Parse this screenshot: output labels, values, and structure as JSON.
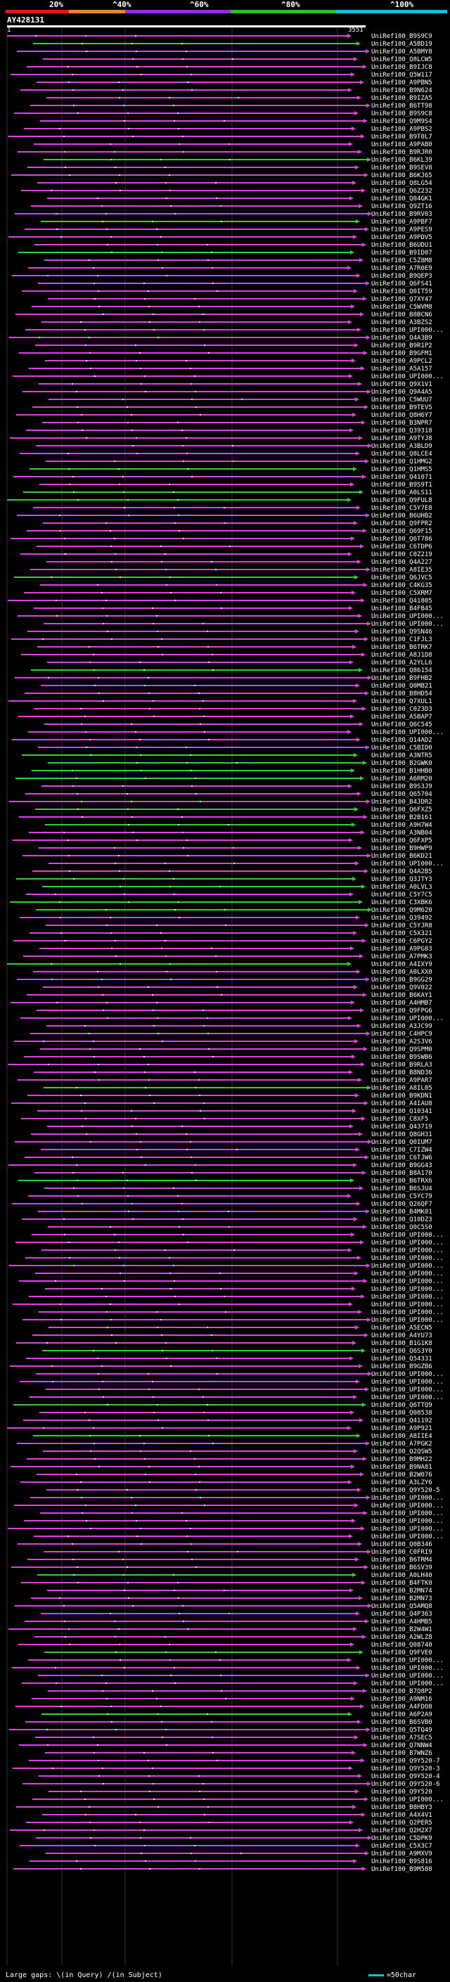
{
  "legend": {
    "labels": [
      "20%",
      "^40%",
      "^60%",
      "^80%",
      "^100%"
    ],
    "colors": [
      "#e01818",
      "#e88a1a",
      "#9a2ae0",
      "#1ec81e",
      "#1ab8e8"
    ]
  },
  "query": {
    "title": "AY428131",
    "start": "1",
    "end": "3551"
  },
  "colors": {
    "low_identity": "#e040e0",
    "high_identity": "#30d030",
    "gap": "#ffffff"
  },
  "hits": [
    {
      "label": "UniRef100_B9S9C9",
      "color": "m"
    },
    {
      "label": "UniRef100_A5BD19",
      "color": "g"
    },
    {
      "label": "UniRef100_A5BMY8",
      "color": "m"
    },
    {
      "label": "UniRef100_Q8LCW5",
      "color": "m"
    },
    {
      "label": "UniRef100_B9IJC8",
      "color": "m"
    },
    {
      "label": "UniRef100_Q5W117",
      "color": "m"
    },
    {
      "label": "UniRef100_A9PBN5",
      "color": "m"
    },
    {
      "label": "UniRef100_B9N624",
      "color": "m"
    },
    {
      "label": "UniRef100_B9IZA5",
      "color": "m"
    },
    {
      "label": "UniRef100_B6TT98",
      "color": "m"
    },
    {
      "label": "UniRef100_B9S9C8",
      "color": "m"
    },
    {
      "label": "UniRef100_Q9M9S4",
      "color": "m"
    },
    {
      "label": "UniRef100_A9PBS2",
      "color": "m"
    },
    {
      "label": "UniRef100_B9T0L7",
      "color": "m"
    },
    {
      "label": "UniRef100_A9PAB0",
      "color": "m"
    },
    {
      "label": "UniRef100_B9RJR0",
      "color": "m"
    },
    {
      "label": "UniRef100_B6KL39",
      "color": "g"
    },
    {
      "label": "UniRef100_B9SEV8",
      "color": "m"
    },
    {
      "label": "UniRef100_B6KJ65",
      "color": "m"
    },
    {
      "label": "UniRef100_Q8LG54",
      "color": "m"
    },
    {
      "label": "UniRef100_Q6Z232",
      "color": "m"
    },
    {
      "label": "UniRef100_Q04GK1",
      "color": "m"
    },
    {
      "label": "UniRef100_Q9ZT16",
      "color": "m"
    },
    {
      "label": "UniRef100_B9RV03",
      "color": "m"
    },
    {
      "label": "UniRef100_A9PBF7",
      "color": "g"
    },
    {
      "label": "UniRef100_A9PES9",
      "color": "m"
    },
    {
      "label": "UniRef100_A9PDV5",
      "color": "m"
    },
    {
      "label": "UniRef100_B6UDU1",
      "color": "m"
    },
    {
      "label": "UniRef100_B9ID07",
      "color": "g"
    },
    {
      "label": "UniRef100_C5Z8M8",
      "color": "m"
    },
    {
      "label": "UniRef100_A7R0E9",
      "color": "m"
    },
    {
      "label": "UniRef100_B9QEP3",
      "color": "m"
    },
    {
      "label": "UniRef100_Q6FS41",
      "color": "m"
    },
    {
      "label": "UniRef100_Q0IT59",
      "color": "m"
    },
    {
      "label": "UniRef100_Q7XY47",
      "color": "m"
    },
    {
      "label": "UniRef100_C5WVM8",
      "color": "m"
    },
    {
      "label": "UniRef100_B8BCN6",
      "color": "m"
    },
    {
      "label": "UniRef100_A3BZS2",
      "color": "m"
    },
    {
      "label": "UniRef100_UPI000...",
      "color": "m"
    },
    {
      "label": "UniRef100_Q4A3B9",
      "color": "m"
    },
    {
      "label": "UniRef100_B9R1P2",
      "color": "m"
    },
    {
      "label": "UniRef100_B9GFM1",
      "color": "m"
    },
    {
      "label": "UniRef100_A9PCL2",
      "color": "m"
    },
    {
      "label": "UniRef100_A5A157",
      "color": "m"
    },
    {
      "label": "UniRef100_UPI000...",
      "color": "m"
    },
    {
      "label": "UniRef100_Q9X1V1",
      "color": "m"
    },
    {
      "label": "UniRef100_Q9A4A5",
      "color": "m"
    },
    {
      "label": "UniRef100_C5WUU7",
      "color": "m"
    },
    {
      "label": "UniRef100_B9TEV5",
      "color": "m"
    },
    {
      "label": "UniRef100_Q8H6Y7",
      "color": "m"
    },
    {
      "label": "UniRef100_B3NPR7",
      "color": "m"
    },
    {
      "label": "UniRef100_Q39318",
      "color": "m"
    },
    {
      "label": "UniRef100_A9TYJ8",
      "color": "m"
    },
    {
      "label": "UniRef100_A3BLD9",
      "color": "m"
    },
    {
      "label": "UniRef100_Q8LCE4",
      "color": "m"
    },
    {
      "label": "UniRef100_Q1HMG2",
      "color": "m"
    },
    {
      "label": "UniRef100_Q1HMS5",
      "color": "g"
    },
    {
      "label": "UniRef100_Q41071",
      "color": "m"
    },
    {
      "label": "UniRef100_B9S9T1",
      "color": "m"
    },
    {
      "label": "UniRef100_A0LS11",
      "color": "g"
    },
    {
      "label": "UniRef100_Q9FUL8",
      "color": "g"
    },
    {
      "label": "UniRef100_C5Y7E8",
      "color": "m"
    },
    {
      "label": "UniRef100_B6UHB2",
      "color": "m"
    },
    {
      "label": "UniRef100_Q9FPR2",
      "color": "m"
    },
    {
      "label": "UniRef100_Q69F15",
      "color": "m"
    },
    {
      "label": "UniRef100_Q6T786",
      "color": "m"
    },
    {
      "label": "UniRef100_C6TDP6",
      "color": "m"
    },
    {
      "label": "UniRef100_C0Z219",
      "color": "m"
    },
    {
      "label": "UniRef100_Q4A227",
      "color": "m"
    },
    {
      "label": "UniRef100_A8IE35",
      "color": "m"
    },
    {
      "label": "UniRef100_Q6JVC5",
      "color": "g"
    },
    {
      "label": "UniRef100_C4KG35",
      "color": "m"
    },
    {
      "label": "UniRef100_C5XRM7",
      "color": "m"
    },
    {
      "label": "UniRef100_Q41805",
      "color": "m"
    },
    {
      "label": "UniRef100_B4FB45",
      "color": "m"
    },
    {
      "label": "UniRef100_UPI000...",
      "color": "m"
    },
    {
      "label": "UniRef100_UPI000...",
      "color": "m"
    },
    {
      "label": "UniRef100_Q9SN46",
      "color": "m"
    },
    {
      "label": "UniRef100_C1FJL3",
      "color": "m"
    },
    {
      "label": "UniRef100_B6TRK7",
      "color": "m"
    },
    {
      "label": "UniRef100_A8J1D8",
      "color": "m"
    },
    {
      "label": "UniRef100_A2YLL6",
      "color": "m"
    },
    {
      "label": "UniRef100_Q86154",
      "color": "g"
    },
    {
      "label": "UniRef100_B9FHB2",
      "color": "m"
    },
    {
      "label": "UniRef100_Q0MB21",
      "color": "m"
    },
    {
      "label": "UniRef100_B8HD54",
      "color": "m"
    },
    {
      "label": "UniRef100_Q7XUL1",
      "color": "m"
    },
    {
      "label": "UniRef100_C0Z3D3",
      "color": "m"
    },
    {
      "label": "UniRef100_A5BAP7",
      "color": "m"
    },
    {
      "label": "UniRef100_Q6C545",
      "color": "m"
    },
    {
      "label": "UniRef100_UPI000...",
      "color": "m"
    },
    {
      "label": "UniRef100_Q14AD2",
      "color": "m"
    },
    {
      "label": "UniRef100_C5BID0",
      "color": "m"
    },
    {
      "label": "UniRef100_A3NTR5",
      "color": "g"
    },
    {
      "label": "UniRef100_B2GWK0",
      "color": "g"
    },
    {
      "label": "UniRef100_B1HHB0",
      "color": "g"
    },
    {
      "label": "UniRef100_A6RM20",
      "color": "g"
    },
    {
      "label": "UniRef100_B9S3J9",
      "color": "m"
    },
    {
      "label": "UniRef100_Q65704",
      "color": "m"
    },
    {
      "label": "UniRef100_B4JDR2",
      "color": "m"
    },
    {
      "label": "UniRef100_Q6FXZ5",
      "color": "g"
    },
    {
      "label": "UniRef100_B2B161",
      "color": "m"
    },
    {
      "label": "UniRef100_A9H7W4",
      "color": "g"
    },
    {
      "label": "UniRef100_A3NB04",
      "color": "m"
    },
    {
      "label": "UniRef100_Q6FXP5",
      "color": "m"
    },
    {
      "label": "UniRef100_B9HWP9",
      "color": "m"
    },
    {
      "label": "UniRef100_B6KD21",
      "color": "m"
    },
    {
      "label": "UniRef100_UPI000...",
      "color": "m"
    },
    {
      "label": "UniRef100_Q4A2B5",
      "color": "m"
    },
    {
      "label": "UniRef100_Q3JTY3",
      "color": "g"
    },
    {
      "label": "UniRef100_A0LVL3",
      "color": "g"
    },
    {
      "label": "UniRef100_C5Y7C5",
      "color": "m"
    },
    {
      "label": "UniRef100_C3XBK6",
      "color": "g"
    },
    {
      "label": "UniRef100_Q9M620",
      "color": "g"
    },
    {
      "label": "UniRef100_Q39492",
      "color": "m"
    },
    {
      "label": "UniRef100_C5YJR8",
      "color": "m"
    },
    {
      "label": "UniRef100_C5X321",
      "color": "m"
    },
    {
      "label": "UniRef100_C6PGY2",
      "color": "m"
    },
    {
      "label": "UniRef100_A9PG83",
      "color": "m"
    },
    {
      "label": "UniRef100_A7PMK3",
      "color": "m"
    },
    {
      "label": "UniRef100_A4IXY9",
      "color": "g"
    },
    {
      "label": "UniRef100_A0LXX0",
      "color": "m"
    },
    {
      "label": "UniRef100_B9GG29",
      "color": "m"
    },
    {
      "label": "UniRef100_Q9V022",
      "color": "m"
    },
    {
      "label": "UniRef100_B6KAY1",
      "color": "m"
    },
    {
      "label": "UniRef100_A4HMB7",
      "color": "m"
    },
    {
      "label": "UniRef100_Q9FPG6",
      "color": "m"
    },
    {
      "label": "UniRef100_UPI000...",
      "color": "m"
    },
    {
      "label": "UniRef100_A3JC99",
      "color": "m"
    },
    {
      "label": "UniRef100_C4HPC9",
      "color": "m"
    },
    {
      "label": "UniRef100_A2S3V6",
      "color": "m"
    },
    {
      "label": "UniRef100_Q9SPM0",
      "color": "m"
    },
    {
      "label": "UniRef100_B9SWB6",
      "color": "m"
    },
    {
      "label": "UniRef100_B9RLA3",
      "color": "m"
    },
    {
      "label": "UniRef100_B8ND36",
      "color": "m"
    },
    {
      "label": "UniRef100_A9PAR7",
      "color": "m"
    },
    {
      "label": "UniRef100_A8IL05",
      "color": "g"
    },
    {
      "label": "UniRef100_B9KDN1",
      "color": "m"
    },
    {
      "label": "UniRef100_A4IAU8",
      "color": "m"
    },
    {
      "label": "UniRef100_Q10341",
      "color": "m"
    },
    {
      "label": "UniRef100_C8XF5",
      "color": "m"
    },
    {
      "label": "UniRef100_Q43719",
      "color": "m"
    },
    {
      "label": "UniRef100_Q8GH31",
      "color": "m"
    },
    {
      "label": "UniRef100_Q0IUM7",
      "color": "m"
    },
    {
      "label": "UniRef100_C7IZW4",
      "color": "m"
    },
    {
      "label": "UniRef100_C6TJW6",
      "color": "m"
    },
    {
      "label": "UniRef100_B9GG43",
      "color": "m"
    },
    {
      "label": "UniRef100_B8A170",
      "color": "m"
    },
    {
      "label": "UniRef100_B6TRX6",
      "color": "g"
    },
    {
      "label": "UniRef100_B6SJU4",
      "color": "m"
    },
    {
      "label": "UniRef100_C5YC79",
      "color": "m"
    },
    {
      "label": "UniRef100_Q26QF7",
      "color": "m"
    },
    {
      "label": "UniRef100_B4MK01",
      "color": "m"
    },
    {
      "label": "UniRef100_Q10DZ3",
      "color": "m"
    },
    {
      "label": "UniRef100_Q0C5S0",
      "color": "m"
    },
    {
      "label": "UniRef100_UPI000...",
      "color": "m"
    },
    {
      "label": "UniRef100_UPI000...",
      "color": "m"
    },
    {
      "label": "UniRef100_UPI000...",
      "color": "m"
    },
    {
      "label": "UniRef100_UPI000...",
      "color": "m"
    },
    {
      "label": "UniRef100_UPI000...",
      "color": "m"
    },
    {
      "label": "UniRef100_UPI000...",
      "color": "m"
    },
    {
      "label": "UniRef100_UPI000...",
      "color": "m"
    },
    {
      "label": "UniRef100_UPI000...",
      "color": "m"
    },
    {
      "label": "UniRef100_UPI000...",
      "color": "m"
    },
    {
      "label": "UniRef100_UPI000...",
      "color": "m"
    },
    {
      "label": "UniRef100_UPI000...",
      "color": "m"
    },
    {
      "label": "UniRef100_UPI000...",
      "color": "m"
    },
    {
      "label": "UniRef100_A5ECN5",
      "color": "m"
    },
    {
      "label": "UniRef100_A4YU73",
      "color": "m"
    },
    {
      "label": "UniRef100_B1G1K8",
      "color": "m"
    },
    {
      "label": "UniRef100_Q6S3Y0",
      "color": "g"
    },
    {
      "label": "UniRef100_Q54331",
      "color": "m"
    },
    {
      "label": "UniRef100_B9GZB6",
      "color": "m"
    },
    {
      "label": "UniRef100_UPI000...",
      "color": "m"
    },
    {
      "label": "UniRef100_UPI000...",
      "color": "m"
    },
    {
      "label": "UniRef100_UPI000...",
      "color": "m"
    },
    {
      "label": "UniRef100_UPI000...",
      "color": "m"
    },
    {
      "label": "UniRef100_Q6TTQ9",
      "color": "g"
    },
    {
      "label": "UniRef100_Q08538",
      "color": "m"
    },
    {
      "label": "UniRef100_Q41192",
      "color": "m"
    },
    {
      "label": "UniRef100_A9P921",
      "color": "m"
    },
    {
      "label": "UniRef100_A8IIE4",
      "color": "g"
    },
    {
      "label": "UniRef100_A7PGK2",
      "color": "m"
    },
    {
      "label": "UniRef100_Q2QSW5",
      "color": "m"
    },
    {
      "label": "UniRef100_B9MH22",
      "color": "m"
    },
    {
      "label": "UniRef100_B9NA81",
      "color": "m"
    },
    {
      "label": "UniRef100_B2W076",
      "color": "m"
    },
    {
      "label": "UniRef100_A3LZY6",
      "color": "m"
    },
    {
      "label": "UniRef100_Q9Y520-5",
      "color": "m"
    },
    {
      "label": "UniRef100_UPI000...",
      "color": "m"
    },
    {
      "label": "UniRef100_UPI000...",
      "color": "m"
    },
    {
      "label": "UniRef100_UPI000...",
      "color": "m"
    },
    {
      "label": "UniRef100_UPI000...",
      "color": "m"
    },
    {
      "label": "UniRef100_UPI000...",
      "color": "m"
    },
    {
      "label": "UniRef100_UPI000...",
      "color": "m"
    },
    {
      "label": "UniRef100_Q0B346",
      "color": "m"
    },
    {
      "label": "UniRef100_C0FRI9",
      "color": "m"
    },
    {
      "label": "UniRef100_B6TRM4",
      "color": "m"
    },
    {
      "label": "UniRef100_B6SV39",
      "color": "m"
    },
    {
      "label": "UniRef100_A0LH40",
      "color": "g"
    },
    {
      "label": "UniRef100_B4FTK0",
      "color": "m"
    },
    {
      "label": "UniRef100_B2MN74",
      "color": "m"
    },
    {
      "label": "UniRef100_B2MN73",
      "color": "m"
    },
    {
      "label": "UniRef100_Q5AMQ8",
      "color": "m"
    },
    {
      "label": "UniRef100_Q4P363",
      "color": "m"
    },
    {
      "label": "UniRef100_A4HMB5",
      "color": "m"
    },
    {
      "label": "UniRef100_B2W4W1",
      "color": "m"
    },
    {
      "label": "UniRef100_A2WLZ8",
      "color": "m"
    },
    {
      "label": "UniRef100_Q08740",
      "color": "m"
    },
    {
      "label": "UniRef100_Q9FVE0",
      "color": "g"
    },
    {
      "label": "UniRef100_UPI000...",
      "color": "m"
    },
    {
      "label": "UniRef100_UPI000...",
      "color": "m"
    },
    {
      "label": "UniRef100_UPI000...",
      "color": "m"
    },
    {
      "label": "UniRef100_UPI000...",
      "color": "m"
    },
    {
      "label": "UniRef100_B7Q8P2",
      "color": "m"
    },
    {
      "label": "UniRef100_A9NM16",
      "color": "m"
    },
    {
      "label": "UniRef100_A4FDO8",
      "color": "m"
    },
    {
      "label": "UniRef100_A6P2A9",
      "color": "g"
    },
    {
      "label": "UniRef100_B6SVB0",
      "color": "m"
    },
    {
      "label": "UniRef100_Q5TQ49",
      "color": "m"
    },
    {
      "label": "UniRef100_A7SEC5",
      "color": "m"
    },
    {
      "label": "UniRef100_Q7NNW4",
      "color": "m"
    },
    {
      "label": "UniRef100_B7WNZ6",
      "color": "m"
    },
    {
      "label": "UniRef100_Q9Y520-7",
      "color": "m"
    },
    {
      "label": "UniRef100_Q9Y520-3",
      "color": "m"
    },
    {
      "label": "UniRef100_Q9Y520-4",
      "color": "m"
    },
    {
      "label": "UniRef100_Q9Y520-6",
      "color": "m"
    },
    {
      "label": "UniRef100_Q9Y520",
      "color": "m"
    },
    {
      "label": "UniRef100_UPI000...",
      "color": "m"
    },
    {
      "label": "UniRef100_B8HBY3",
      "color": "m"
    },
    {
      "label": "UniRef100_A4X4V1",
      "color": "m"
    },
    {
      "label": "UniRef100_Q2PER5",
      "color": "m"
    },
    {
      "label": "UniRef100_Q2H2X7",
      "color": "m"
    },
    {
      "label": "UniRef100_C5DPK9",
      "color": "m"
    },
    {
      "label": "UniRef100_C5X3C7",
      "color": "m"
    },
    {
      "label": "UniRef100_A9MXV9",
      "color": "m"
    },
    {
      "label": "UniRef100_B9S816",
      "color": "m"
    },
    {
      "label": "UniRef100_B9M580",
      "color": "m"
    }
  ],
  "footer": {
    "large_gaps_label": "Large gaps:",
    "query_gap_marker": "\\",
    "query_gap_text": "(in Query)",
    "subject_gap_marker": "/",
    "subject_gap_text": "(in Subject)",
    "scale_text": "=50char"
  }
}
